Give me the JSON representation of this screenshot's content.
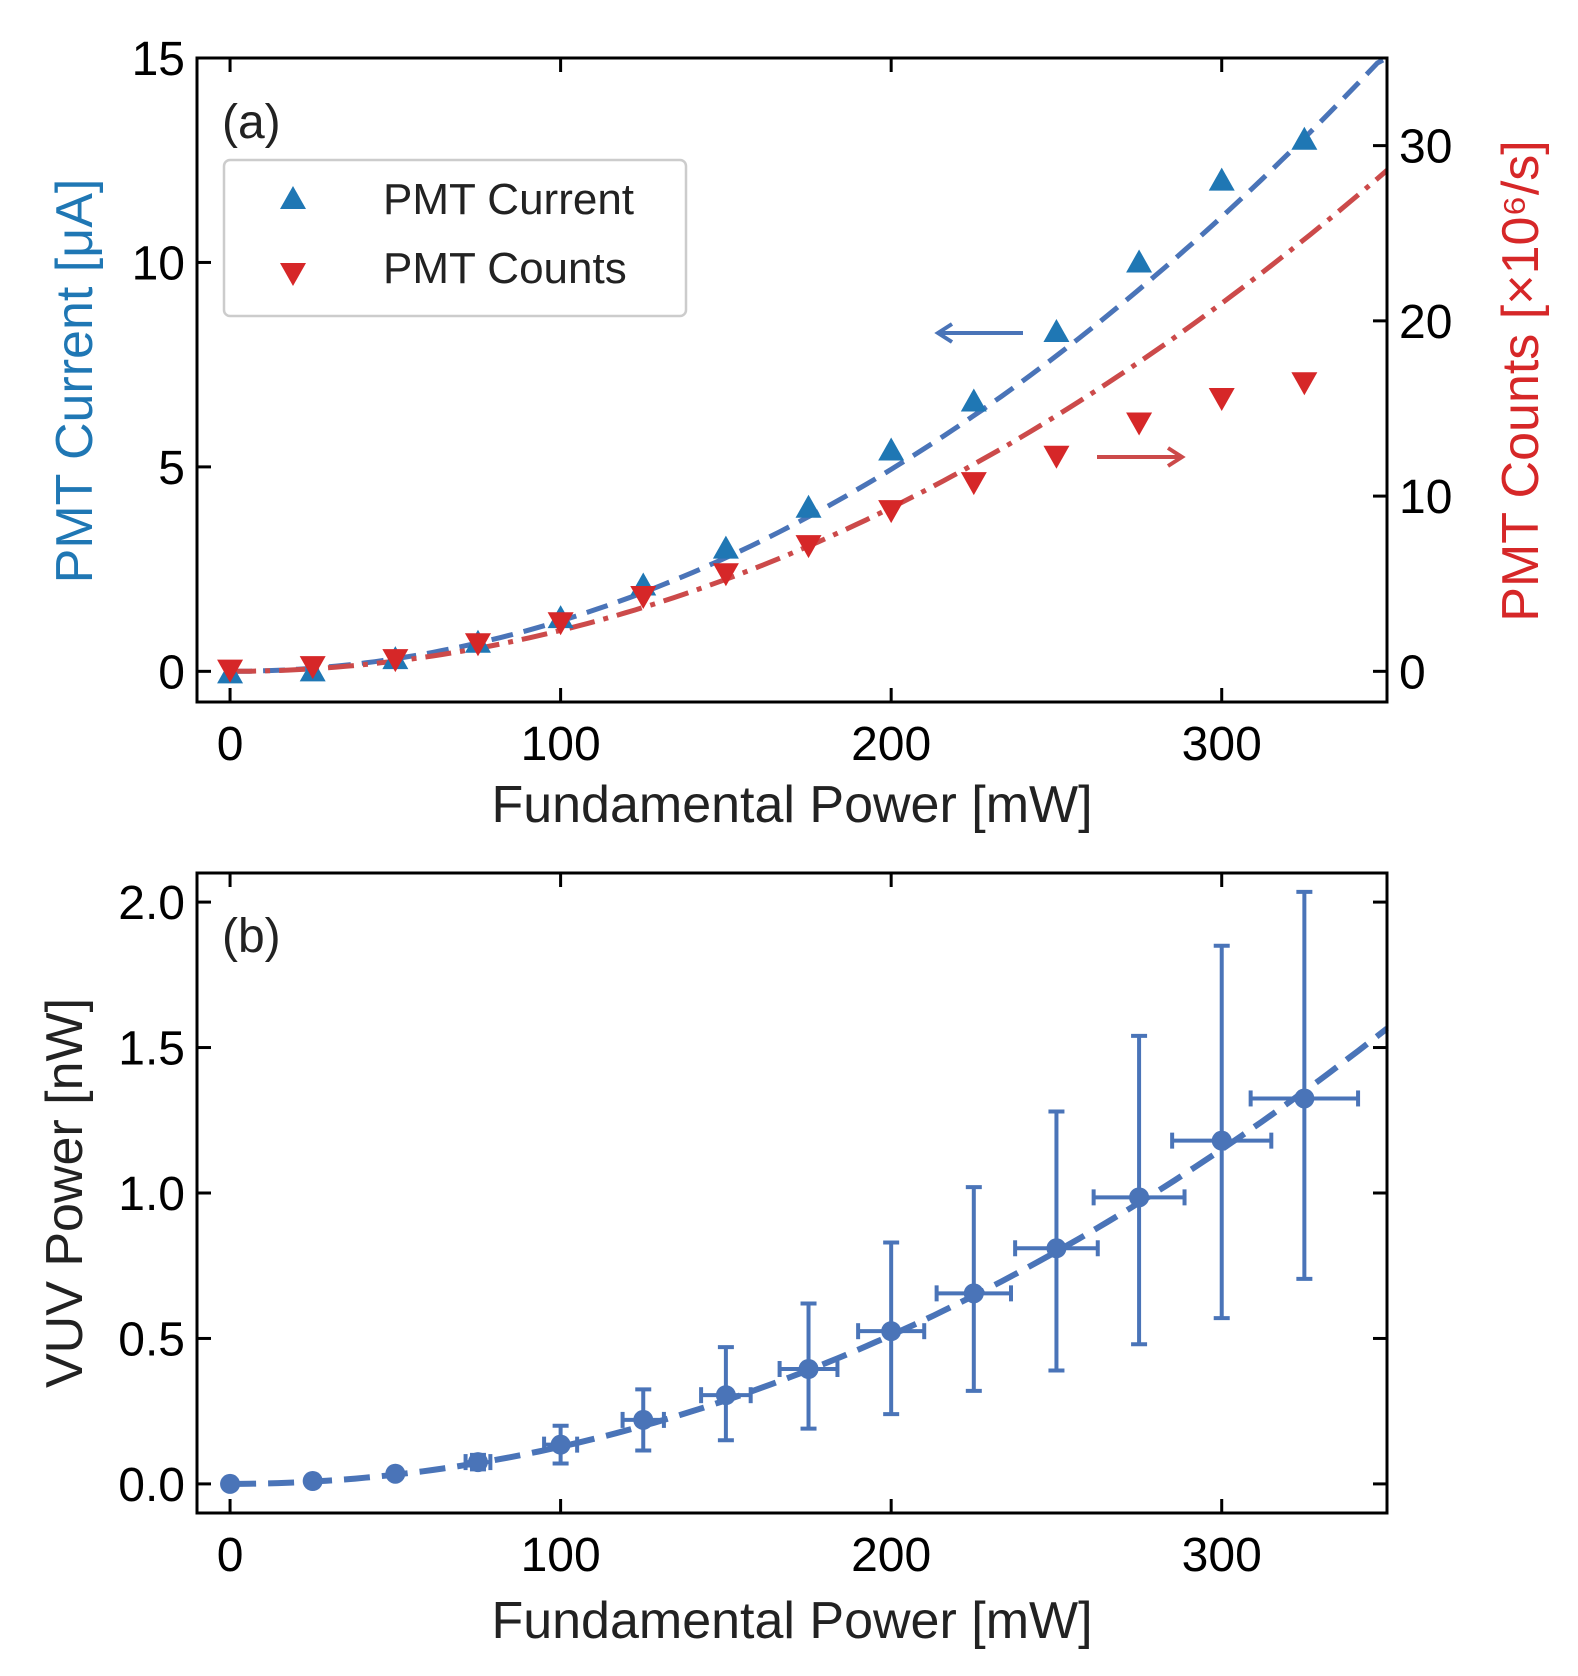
{
  "chart_data": [
    {
      "type": "scatter",
      "panel_label": "(a)",
      "xlabel": "Fundamental Power [mW]",
      "ylabel_left": "PMT Current [μA]",
      "ylabel_right": "PMT Counts [×10⁶/s]",
      "xlim": [
        -10,
        350
      ],
      "ylim_left": [
        -0.75,
        15
      ],
      "ylim_right": [
        -1.75,
        35
      ],
      "x_ticks": [
        "0",
        "100",
        "200",
        "300"
      ],
      "y_ticks_left": [
        "0",
        "5",
        "10",
        "15"
      ],
      "y_ticks_right": [
        "0",
        "10",
        "20",
        "30"
      ],
      "legend_position": "upper-left",
      "colors": {
        "current": "#1f77b4",
        "counts": "#d62728",
        "current_fit": "#4a74b8",
        "counts_fit": "#cc4a4a"
      },
      "series": [
        {
          "name": "PMT Current",
          "axis": "left",
          "marker": "triangle-up",
          "x": [
            0,
            25,
            50,
            75,
            100,
            125,
            150,
            175,
            200,
            225,
            250,
            275,
            300,
            325
          ],
          "y": [
            -0.05,
            0.0,
            0.3,
            0.7,
            1.3,
            2.1,
            3.0,
            4.0,
            5.4,
            6.6,
            8.3,
            10.0,
            12.0,
            13.0
          ]
        },
        {
          "name": "PMT Counts",
          "axis": "right",
          "marker": "triangle-down",
          "x": [
            0,
            25,
            50,
            75,
            100,
            125,
            150,
            175,
            200,
            225,
            250,
            275,
            300,
            325
          ],
          "y": [
            0.1,
            0.3,
            0.7,
            1.6,
            2.8,
            4.3,
            5.6,
            7.2,
            9.2,
            10.8,
            12.3,
            14.2,
            15.6,
            16.5
          ]
        }
      ],
      "fits": [
        {
          "name": "PMT Current fit",
          "axis": "left",
          "style": "dashed",
          "model": "y = a*x^2",
          "a": 0.0001235
        },
        {
          "name": "PMT Counts fit",
          "axis": "right",
          "style": "dash-dot",
          "model": "y = a*x^2",
          "a": 0.0002334
        }
      ],
      "annotations": [
        {
          "type": "arrow",
          "direction": "left",
          "series": "PMT Current"
        },
        {
          "type": "arrow",
          "direction": "right",
          "series": "PMT Counts"
        }
      ]
    },
    {
      "type": "scatter",
      "panel_label": "(b)",
      "xlabel": "Fundamental Power [mW]",
      "ylabel": "VUV Power [nW]",
      "xlim": [
        -10,
        350
      ],
      "ylim": [
        -0.1,
        2.1
      ],
      "x_ticks": [
        "0",
        "100",
        "200",
        "300"
      ],
      "y_ticks": [
        "0.0",
        "0.5",
        "1.0",
        "1.5",
        "2.0"
      ],
      "colors": {
        "points": "#4a74b8"
      },
      "series": [
        {
          "name": "VUV Power",
          "marker": "circle",
          "x": [
            0,
            25,
            50,
            75,
            100,
            125,
            150,
            175,
            200,
            225,
            250,
            275,
            300,
            325
          ],
          "y": [
            0.0,
            0.01,
            0.035,
            0.075,
            0.135,
            0.22,
            0.305,
            0.395,
            0.525,
            0.655,
            0.81,
            0.985,
            1.18,
            1.325
          ],
          "y_err_low": [
            0,
            0,
            0,
            0.025,
            0.065,
            0.105,
            0.155,
            0.205,
            0.285,
            0.335,
            0.42,
            0.505,
            0.61,
            0.62
          ],
          "y_err_high": [
            0,
            0,
            0,
            0.025,
            0.065,
            0.105,
            0.165,
            0.225,
            0.305,
            0.365,
            0.47,
            0.555,
            0.67,
            0.71
          ],
          "x_err": [
            0,
            0,
            0,
            3.75,
            5.0,
            6.25,
            7.5,
            8.75,
            10.0,
            11.25,
            12.5,
            13.75,
            15.0,
            16.25
          ]
        }
      ],
      "fits": [
        {
          "name": "VUV Power fit",
          "style": "dashed",
          "model": "y = a*x^2",
          "a": 1.278e-05
        }
      ]
    }
  ]
}
